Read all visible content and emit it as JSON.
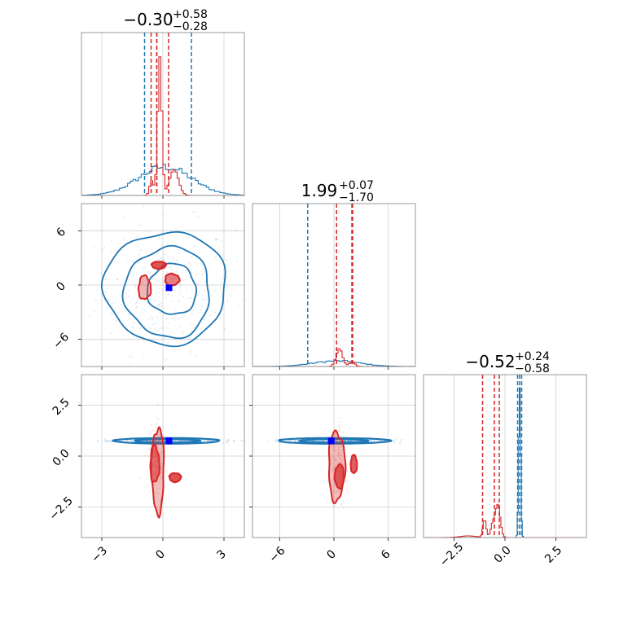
{
  "chart_data": {
    "type": "corner",
    "colors": {
      "blue": "#1f77b4",
      "red": "#d62728",
      "truth_marker": "#0000ff",
      "grid": "#b0b0b0"
    },
    "series": [
      {
        "color": "#1f77b4"
      },
      {
        "color": "#d62728"
      }
    ],
    "grid": true,
    "parameters": [
      {
        "range": [
          -4,
          4
        ],
        "ticks": [
          -3,
          0,
          3
        ],
        "tick_labels": [
          "−3",
          "0",
          "3"
        ],
        "title": {
          "median": "−0.30",
          "plus": "+0.58",
          "minus": "−0.28"
        },
        "quantiles_blue": [
          -0.9,
          -0.3,
          1.4
        ],
        "quantiles_red": [
          -0.58,
          -0.3,
          0.28
        ]
      },
      {
        "range": [
          -9,
          9
        ],
        "ticks": [
          -6,
          0,
          6
        ],
        "tick_labels": [
          "−6",
          "0",
          "6"
        ],
        "title": {
          "median": "1.99",
          "plus": "+0.07",
          "minus": "−1.70"
        },
        "quantiles_blue": [
          -2.9,
          1.99,
          2.06
        ],
        "quantiles_red": [
          0.29,
          1.99,
          2.06
        ]
      },
      {
        "range": [
          -4,
          4
        ],
        "ticks": [
          -2.5,
          0.0,
          2.5
        ],
        "tick_labels": [
          "−2.5",
          "0.0",
          "2.5"
        ],
        "title": {
          "median": "−0.52",
          "plus": "+0.24",
          "minus": "−0.58"
        },
        "quantiles_blue": [
          0.62,
          0.72,
          0.82
        ],
        "quantiles_red": [
          -1.1,
          -0.52,
          -0.28
        ]
      }
    ],
    "truth": [
      0.3,
      -0.3,
      0.75
    ]
  }
}
